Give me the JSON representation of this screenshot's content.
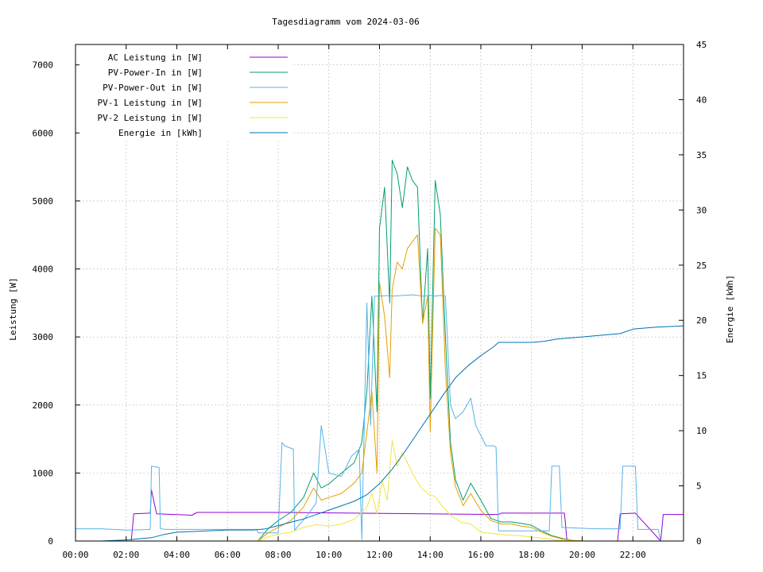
{
  "chart_data": {
    "type": "line",
    "title": "Tagesdiagramm vom 2024-03-06",
    "ylabel": "Leistung [W]",
    "y2label": "Energie [kWh]",
    "xlim": [
      0,
      24
    ],
    "ylim": [
      0,
      7300
    ],
    "y2lim": [
      0,
      45
    ],
    "x_ticks": [
      0,
      2,
      4,
      6,
      8,
      10,
      12,
      14,
      16,
      18,
      20,
      22
    ],
    "x_tick_labels": [
      "00:00",
      "02:00",
      "04:00",
      "06:00",
      "08:00",
      "10:00",
      "12:00",
      "14:00",
      "16:00",
      "18:00",
      "20:00",
      "22:00"
    ],
    "y_ticks": [
      0,
      1000,
      2000,
      3000,
      4000,
      5000,
      6000,
      7000
    ],
    "y_tick_labels": [
      "0",
      "1000",
      "2000",
      "3000",
      "4000",
      "5000",
      "6000",
      "7000"
    ],
    "y2_ticks": [
      0,
      5,
      10,
      15,
      20,
      25,
      30,
      35,
      40,
      45
    ],
    "y2_tick_labels": [
      "0",
      "5",
      "10",
      "15",
      "20",
      "25",
      "30",
      "35",
      "40",
      "45"
    ],
    "grid": true,
    "legend_position": "top-left",
    "series": [
      {
        "name": "AC Leistung in [W]",
        "color": "#9400d3",
        "axis": "left",
        "x": [
          0,
          2.2,
          2.3,
          2.95,
          3.0,
          3.2,
          4.6,
          4.8,
          7.1,
          7.25,
          8.2,
          8.25,
          16.7,
          16.8,
          19.3,
          19.4,
          21.4,
          21.5,
          22.1,
          23.1,
          23.2,
          24
        ],
        "y": [
          0,
          0,
          400,
          410,
          750,
          400,
          380,
          420,
          420,
          420,
          420,
          420,
          390,
          410,
          410,
          0,
          0,
          400,
          410,
          0,
          390,
          390
        ]
      },
      {
        "name": "PV-Power-In in [W]",
        "color": "#009e73",
        "axis": "left",
        "x": [
          0,
          7.2,
          7.6,
          8.0,
          8.5,
          9.0,
          9.4,
          9.7,
          10.0,
          10.5,
          11.0,
          11.3,
          11.5,
          11.7,
          11.9,
          12.0,
          12.2,
          12.4,
          12.5,
          12.7,
          12.9,
          13.1,
          13.3,
          13.5,
          13.7,
          13.9,
          14.0,
          14.2,
          14.4,
          14.6,
          14.8,
          15.0,
          15.3,
          15.6,
          16.0,
          16.4,
          16.8,
          17.2,
          17.6,
          18.0,
          18.4,
          18.8,
          19.2,
          19.6,
          20,
          24
        ],
        "y": [
          0,
          0,
          180,
          300,
          420,
          640,
          1000,
          780,
          840,
          1000,
          1150,
          1450,
          2200,
          3600,
          1900,
          4600,
          5200,
          3500,
          5600,
          5400,
          4900,
          5500,
          5300,
          5200,
          3200,
          4300,
          2100,
          5300,
          4800,
          3000,
          1450,
          900,
          600,
          850,
          600,
          330,
          280,
          280,
          260,
          230,
          150,
          80,
          40,
          10,
          0,
          0
        ]
      },
      {
        "name": "PV-Power-Out in [W]",
        "color": "#56b4e9",
        "axis": "left",
        "x": [
          0,
          1.0,
          2.05,
          2.15,
          2.95,
          3.0,
          3.3,
          3.35,
          3.6,
          7.15,
          7.2,
          7.9,
          8.0,
          8.15,
          8.25,
          8.6,
          8.65,
          9.2,
          9.5,
          9.7,
          10.0,
          10.5,
          10.9,
          11.2,
          11.3,
          11.5,
          11.65,
          11.8,
          12.0,
          12.4,
          12.5,
          13.3,
          13.5,
          13.7,
          14.0,
          14.2,
          14.4,
          14.6,
          14.8,
          15.0,
          15.3,
          15.6,
          15.8,
          16.2,
          16.5,
          16.6,
          16.7,
          18.7,
          18.8,
          19.1,
          19.2,
          20.5,
          21.5,
          21.6,
          22.1,
          22.2,
          23.0,
          23.1,
          24
        ],
        "y": [
          180,
          180,
          160,
          160,
          170,
          1100,
          1080,
          180,
          170,
          170,
          120,
          120,
          120,
          1450,
          1400,
          1350,
          160,
          400,
          560,
          1700,
          1000,
          950,
          1250,
          1350,
          20,
          3500,
          1700,
          3600,
          3600,
          3610,
          3600,
          3620,
          3610,
          3600,
          3610,
          3600,
          3610,
          3600,
          2000,
          1800,
          1900,
          2100,
          1700,
          1400,
          1400,
          1380,
          150,
          150,
          1100,
          1100,
          200,
          180,
          180,
          1100,
          1100,
          170,
          170,
          0,
          0
        ]
      },
      {
        "name": "PV-1 Leistung in [W]",
        "color": "#e69f00",
        "axis": "left",
        "x": [
          0,
          7.2,
          7.6,
          8.0,
          8.5,
          9.0,
          9.4,
          9.7,
          10.0,
          10.5,
          11.0,
          11.3,
          11.5,
          11.7,
          11.9,
          12.0,
          12.2,
          12.4,
          12.5,
          12.7,
          12.9,
          13.1,
          13.3,
          13.5,
          13.7,
          13.9,
          14.0,
          14.2,
          14.4,
          14.6,
          14.8,
          15.0,
          15.3,
          15.6,
          16.0,
          16.4,
          16.8,
          17.2,
          17.6,
          18.0,
          18.4,
          18.8,
          19.2,
          19.6,
          20,
          24
        ],
        "y": [
          0,
          0,
          120,
          200,
          300,
          500,
          780,
          600,
          640,
          700,
          850,
          1000,
          1600,
          2200,
          1000,
          3800,
          3300,
          2400,
          3700,
          4100,
          4000,
          4300,
          4400,
          4500,
          3200,
          3600,
          1600,
          4600,
          4500,
          2500,
          1300,
          800,
          520,
          700,
          450,
          300,
          250,
          250,
          220,
          200,
          130,
          70,
          30,
          10,
          0,
          0
        ]
      },
      {
        "name": "PV-2 Leistung in [W]",
        "color": "#f0e442",
        "axis": "left",
        "x": [
          0,
          7.2,
          7.6,
          8.0,
          8.5,
          9.0,
          9.5,
          10.0,
          10.5,
          11.0,
          11.3,
          11.5,
          11.7,
          11.9,
          12.1,
          12.3,
          12.5,
          12.7,
          12.9,
          13.1,
          13.3,
          13.6,
          13.9,
          14.2,
          14.5,
          14.8,
          15.2,
          15.6,
          16.0,
          16.5,
          17.0,
          17.5,
          18.0,
          18.5,
          19.0,
          19.5,
          20,
          24
        ],
        "y": [
          0,
          0,
          60,
          100,
          130,
          200,
          240,
          220,
          250,
          320,
          420,
          500,
          700,
          400,
          900,
          600,
          1480,
          1100,
          1300,
          1150,
          1000,
          800,
          700,
          650,
          500,
          380,
          280,
          250,
          130,
          110,
          90,
          80,
          60,
          40,
          15,
          5,
          0,
          0
        ]
      },
      {
        "name": "Energie in [kWh]",
        "color": "#0072b2",
        "axis": "right",
        "x": [
          0,
          1.0,
          2.0,
          3.0,
          3.5,
          4.0,
          5.0,
          6.0,
          7.0,
          7.5,
          8.0,
          8.5,
          9.0,
          9.5,
          10.0,
          10.5,
          11.0,
          11.5,
          12.0,
          12.5,
          13.0,
          13.5,
          14.0,
          14.5,
          15.0,
          15.5,
          16.0,
          16.5,
          16.7,
          17.0,
          18.0,
          18.5,
          19.0,
          20.0,
          21.0,
          21.5,
          22.0,
          22.5,
          23.0,
          24
        ],
        "y": [
          0,
          0,
          0.1,
          0.3,
          0.6,
          0.8,
          0.9,
          1.0,
          1.0,
          1.1,
          1.4,
          1.7,
          2.0,
          2.4,
          2.8,
          3.2,
          3.6,
          4.2,
          5.2,
          6.5,
          8.1,
          9.8,
          11.5,
          13.2,
          14.8,
          15.9,
          16.8,
          17.6,
          18.0,
          18.0,
          18.0,
          18.1,
          18.3,
          18.5,
          18.7,
          18.8,
          19.2,
          19.3,
          19.4,
          19.5
        ]
      }
    ]
  }
}
